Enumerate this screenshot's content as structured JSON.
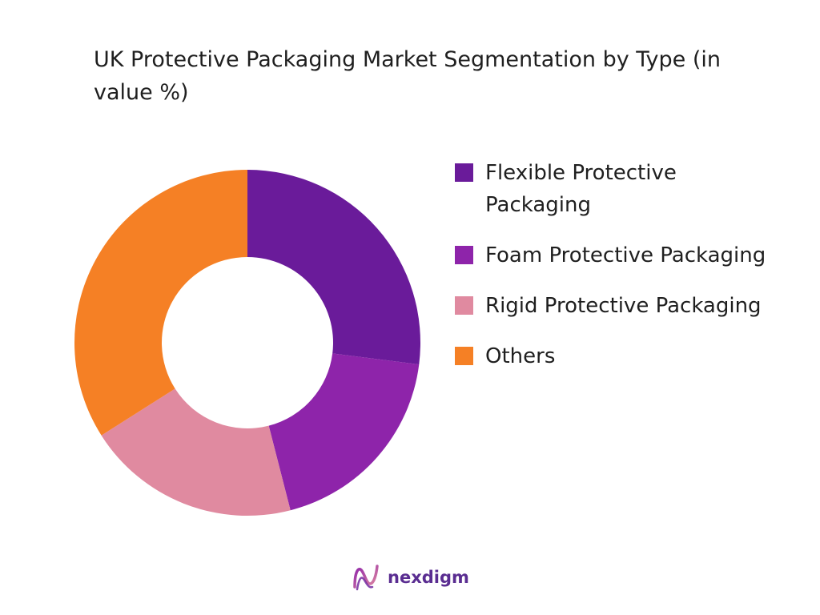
{
  "chart_data": {
    "type": "pie",
    "title": "UK Protective Packaging Market Segmentation by Type (in value %)",
    "categories": [
      "Flexible Protective Packaging",
      "Foam Protective Packaging",
      "Rigid Protective Packaging",
      "Others"
    ],
    "values": [
      27,
      19,
      20,
      34
    ],
    "colors": [
      "#6a1b9a",
      "#8e24aa",
      "#e08aa0",
      "#f58025"
    ],
    "donut": true,
    "legend_position": "right"
  },
  "brand": {
    "name": "nexdigm",
    "logo_icon": "nexdigm-logo-icon",
    "color": "#5a2d91"
  }
}
